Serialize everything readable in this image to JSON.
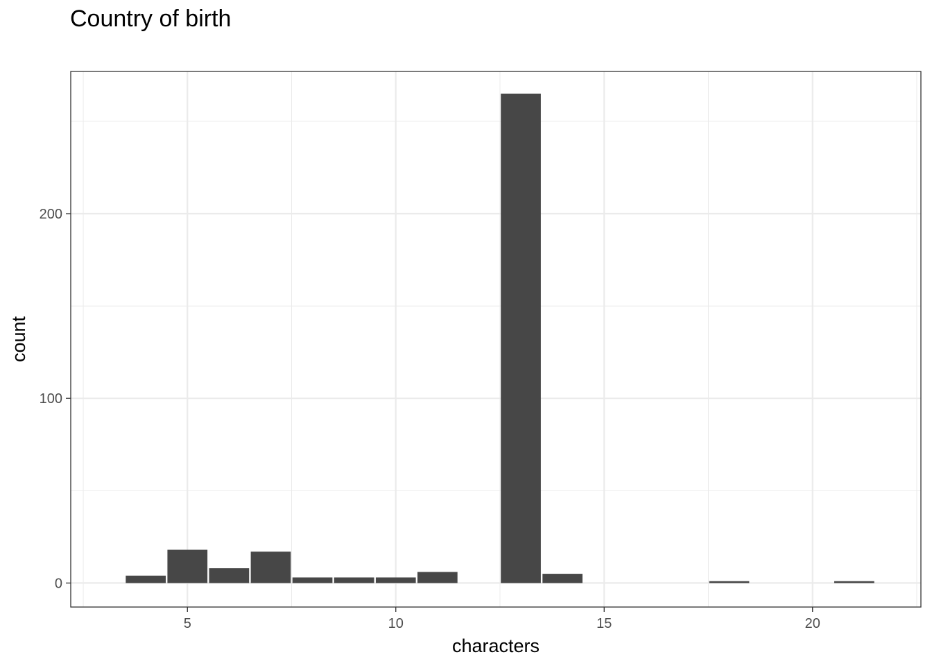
{
  "chart_data": {
    "type": "bar",
    "title": "Country of birth",
    "xlabel": "characters",
    "ylabel": "count",
    "x": [
      4,
      5,
      6,
      7,
      8,
      9,
      10,
      11,
      13,
      14,
      18,
      21
    ],
    "values": [
      4,
      18,
      8,
      17,
      3,
      3,
      3,
      6,
      265,
      5,
      1,
      1
    ],
    "xlim": [
      2.2,
      22.6
    ],
    "ylim": [
      -13,
      277
    ],
    "x_ticks": [
      5,
      10,
      15,
      20
    ],
    "x_tick_labels": [
      "5",
      "10",
      "15",
      "20"
    ],
    "y_ticks": [
      0,
      100,
      200
    ],
    "y_tick_labels": [
      "0",
      "100",
      "200"
    ],
    "grid": true,
    "bar_color": "#474747",
    "grid_color": "#ebebeb"
  }
}
